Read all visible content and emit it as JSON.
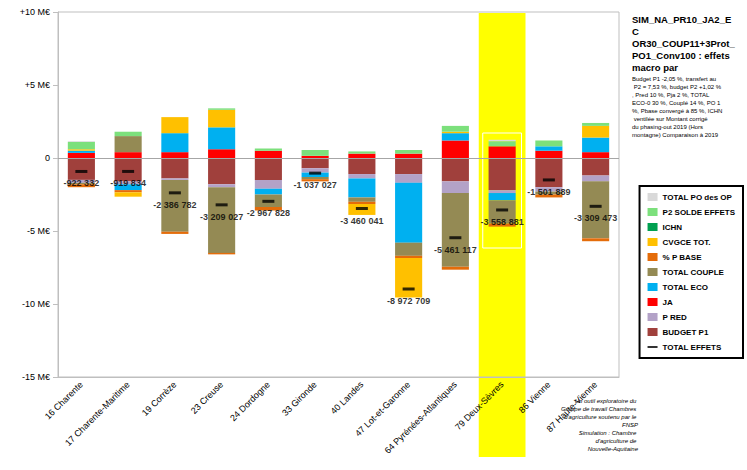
{
  "chart_data": {
    "type": "bar",
    "title": "SIM_NA_PR10_JA2_EC OR30_COUP11+3Prot_ PO1_Conv100 : effets macro par",
    "subtitle": "Budget P1 -2,05 %, transfert au P2 = 7,53 %, budget P2 +1,02 %, Pred 10 %, Pja 2 %, TOTAL ECO-0 30 %, Couplé 14 %, PO 1 %, Pbase convergé à 85 %, ICHN ventilée sur Montant corrigé du phasing-out 2019 (Hors montagne) Comparaison à 2019",
    "annotations": [
      "Un outil exploratoire du Groupe de travail Chambres d'agriculture soutenu par le FNSP",
      "Simulation : Chambre d'agriculture de Nouvelle-Aquitaine"
    ],
    "categories": [
      "16 Charente",
      "17 Charente-Maritime",
      "19 Corrèze",
      "23 Creuse",
      "24 Dordogne",
      "33 Gironde",
      "40 Landes",
      "47 Lot-et-Garonne",
      "64 Pyrénées-Atlantiques",
      "79 Deux-Sèvres",
      "86 Vienne",
      "87 Haute-Vienne"
    ],
    "stacked": true,
    "grid": false,
    "legend": "right",
    "ylim": [
      -15,
      10
    ],
    "yticks": [
      {
        "value": -15,
        "label": "-15 M€"
      },
      {
        "value": -10,
        "label": "-10 M€"
      },
      {
        "value": -5,
        "label": "-5 M€"
      },
      0,
      {
        "value": 5,
        "label": "+5 M€"
      },
      {
        "value": 10,
        "label": "+10 M€"
      }
    ],
    "series": [
      {
        "name": "TOTAL PO des OP",
        "type": "bar",
        "color": "#d9d9d9",
        "values": [
          0.05,
          0,
          0,
          0,
          0,
          0,
          0,
          0,
          0,
          0.1,
          0,
          0
        ]
      },
      {
        "name": "P2 SOLDE EFFETS",
        "type": "bar",
        "color": "#7ce07c",
        "values": [
          0.5,
          0.3,
          0,
          0.1,
          0.15,
          0.4,
          0.15,
          0.25,
          0.4,
          0.35,
          0.4,
          0.2
        ]
      },
      {
        "name": "ICHN",
        "type": "bar",
        "color": "#00a050",
        "values": [
          0,
          0,
          0,
          0,
          0,
          0,
          0,
          0,
          0,
          0,
          0,
          0
        ]
      },
      {
        "name": "CVGCE TOT.",
        "type": "bar",
        "color": "#ffc000",
        "values": [
          0.1,
          -0.3,
          1.1,
          1.2,
          0,
          0,
          -0.75,
          -2.7,
          0.1,
          0,
          0,
          0.8
        ]
      },
      {
        "name": "% P BASE",
        "type": "bar",
        "color": "#e46c0a",
        "values": [
          -0.2,
          -0.15,
          -0.15,
          -0.1,
          -0.25,
          -0.15,
          -0.15,
          -0.15,
          -0.2,
          -0.2,
          -0.2,
          -0.2
        ]
      },
      {
        "name": "TOTAL COUPLE",
        "type": "bar",
        "color": "#948a54",
        "values": [
          -0.1,
          1.1,
          -3.55,
          -4.5,
          -0.85,
          -0.15,
          -0.3,
          -0.9,
          -5.05,
          -1.6,
          -0.2,
          -3.9
        ]
      },
      {
        "name": "TOTAL ECO",
        "type": "bar",
        "color": "#00b0f0",
        "values": [
          0.15,
          -0.4,
          1.3,
          1.5,
          -0.4,
          -0.3,
          -1.3,
          -4.1,
          0.5,
          -0.5,
          0.3,
          1.0
        ]
      },
      {
        "name": "JA",
        "type": "bar",
        "color": "#ff0000",
        "values": [
          0.35,
          0.4,
          0.4,
          0.6,
          0.5,
          0.15,
          0.3,
          0.3,
          1.2,
          0.8,
          0.5,
          0.4
        ]
      },
      {
        "name": "P RED",
        "type": "bar",
        "color": "#b3a2c7",
        "values": [
          -0.2,
          -0.2,
          -0.1,
          -0.2,
          -0.6,
          -0.3,
          -0.3,
          -0.6,
          -0.8,
          -0.2,
          -0.3,
          -0.4
        ]
      },
      {
        "name": "BUDGET P1",
        "type": "bar",
        "color": "#a0403c",
        "values": [
          -1.5,
          -1.6,
          -1.4,
          -1.8,
          -1.5,
          -0.7,
          -1.1,
          -1.1,
          -1.6,
          -2.2,
          -2.0,
          -1.2
        ]
      },
      {
        "name": "TOTAL EFFETS",
        "type": "scatter",
        "marker": "dash",
        "color": "#000000",
        "data_labels": true,
        "values": [
          -0.922332,
          -0.919834,
          -2.386782,
          -3.209027,
          -2.967828,
          -1.037027,
          -3.460041,
          -8.972709,
          -5.461117,
          -3.558881,
          -1.501889,
          -3.309473
        ],
        "value_labels": [
          "-922 332",
          "-919 834",
          "-2 386 782",
          "-3 209 027",
          "-2 967 828",
          "-1 037 027",
          "-3 460 041",
          "-8 972 709",
          "-5 461 117",
          "-3 558 881",
          "-1 501 889",
          "-3 309 473"
        ]
      }
    ]
  }
}
